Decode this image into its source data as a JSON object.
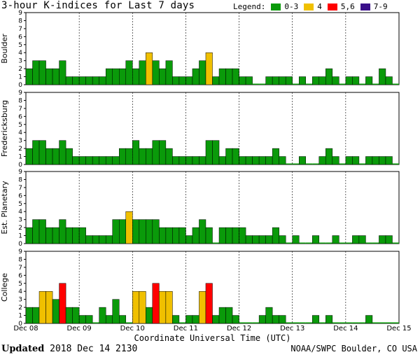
{
  "header": {
    "title": "3-hour K-indices for Last 7 days",
    "legend_label": "Legend:",
    "legend": [
      {
        "label": "0-3",
        "color": "#0a9a0a"
      },
      {
        "label": "4",
        "color": "#f0c000"
      },
      {
        "label": "5,6",
        "color": "#ff0000"
      },
      {
        "label": "7-9",
        "color": "#3a0f8a"
      }
    ]
  },
  "footer": {
    "updated_label": "Updated",
    "updated_value": "2018 Dec 14 2130",
    "credit": "NOAA/SWPC Boulder, CO USA"
  },
  "chart_data": {
    "type": "bar",
    "xlabel": "Coordinate Universal Time (UTC)",
    "x_tick_labels": [
      "Dec 08",
      "Dec 09",
      "Dec 10",
      "Dec 11",
      "Dec 12",
      "Dec 13",
      "Dec 14",
      "Dec 15"
    ],
    "y_ticks": [
      "0",
      "1",
      "2",
      "3",
      "4",
      "5",
      "6",
      "7",
      "8",
      "9"
    ],
    "ylim": [
      0,
      9
    ],
    "bins_per_day": 8,
    "days": 7,
    "color_scale": [
      {
        "range": "0-3",
        "color": "#0a9a0a"
      },
      {
        "range": "4",
        "color": "#f0c000"
      },
      {
        "range": "5,6",
        "color": "#ff0000"
      },
      {
        "range": "7-9",
        "color": "#3a0f8a"
      }
    ],
    "panels": [
      {
        "name": "Boulder",
        "values": [
          2,
          3,
          3,
          2,
          2,
          3,
          1,
          1,
          1,
          1,
          1,
          1,
          2,
          2,
          2,
          3,
          2,
          3,
          4,
          3,
          2,
          3,
          1,
          1,
          1,
          2,
          3,
          4,
          1,
          2,
          2,
          2,
          1,
          1,
          0,
          0,
          1,
          1,
          1,
          1,
          0,
          1,
          0,
          1,
          1,
          2,
          1,
          0,
          1,
          1,
          0,
          1,
          0,
          2,
          1,
          0
        ]
      },
      {
        "name": "Fredericksburg",
        "values": [
          2,
          3,
          3,
          2,
          2,
          3,
          2,
          1,
          1,
          1,
          1,
          1,
          1,
          1,
          2,
          2,
          3,
          2,
          2,
          3,
          3,
          2,
          1,
          1,
          1,
          1,
          1,
          3,
          3,
          1,
          2,
          2,
          1,
          1,
          1,
          1,
          1,
          2,
          1,
          0,
          0,
          1,
          0,
          0,
          1,
          2,
          1,
          0,
          1,
          1,
          0,
          1,
          1,
          1,
          1,
          0
        ]
      },
      {
        "name": "Est. Planetary",
        "values": [
          2,
          3,
          3,
          2,
          2,
          3,
          2,
          2,
          2,
          1,
          1,
          1,
          1,
          3,
          3,
          4,
          3,
          3,
          3,
          3,
          2,
          2,
          2,
          2,
          1,
          2,
          3,
          2,
          0,
          2,
          2,
          2,
          2,
          1,
          1,
          1,
          1,
          2,
          1,
          0,
          1,
          0,
          0,
          1,
          0,
          0,
          1,
          0,
          0,
          1,
          1,
          0,
          0,
          1,
          1,
          0
        ]
      },
      {
        "name": "College",
        "values": [
          2,
          2,
          4,
          4,
          3,
          5,
          2,
          2,
          1,
          1,
          0,
          2,
          1,
          3,
          1,
          0,
          4,
          4,
          2,
          5,
          4,
          4,
          1,
          0,
          1,
          1,
          4,
          5,
          1,
          2,
          2,
          1,
          0,
          0,
          0,
          1,
          2,
          1,
          1,
          0,
          0,
          0,
          0,
          1,
          0,
          1,
          0,
          0,
          0,
          0,
          0,
          1,
          0,
          0,
          0,
          0
        ]
      }
    ]
  }
}
